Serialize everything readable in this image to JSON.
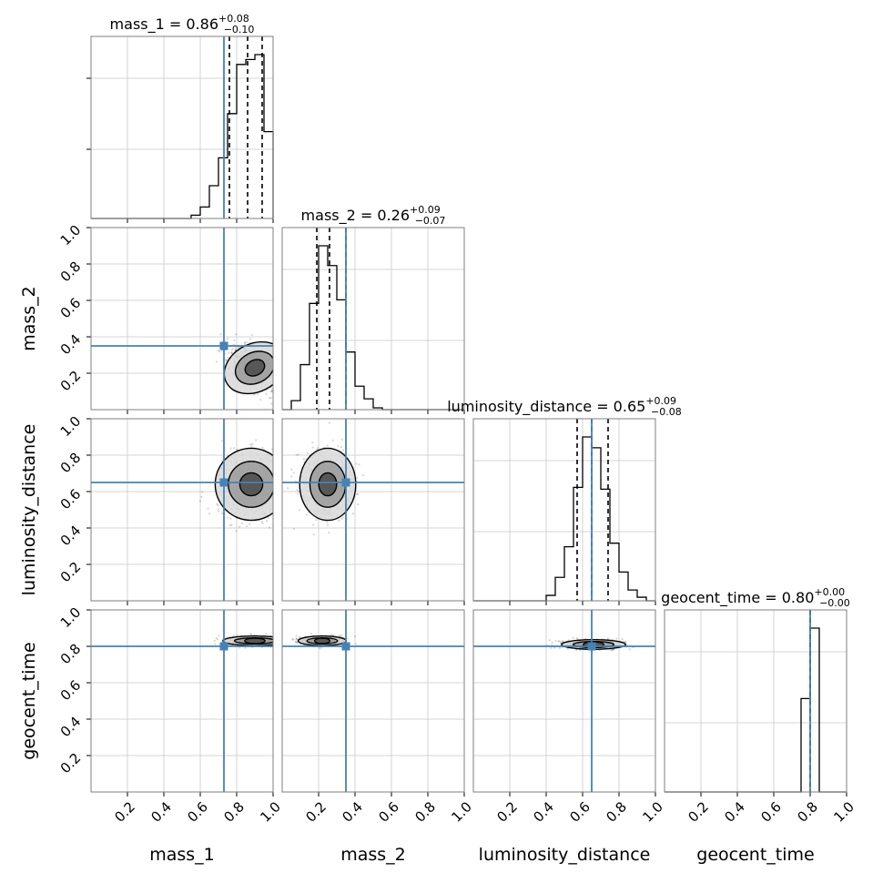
{
  "figure": {
    "type": "corner-plot",
    "truth_color": "#4682b4"
  },
  "chart_data": {
    "type": "corner",
    "parameters": [
      "mass_1",
      "mass_2",
      "luminosity_distance",
      "geocent_time"
    ],
    "axis_labels": [
      "mass_1",
      "mass_2",
      "luminosity_distance",
      "geocent_time"
    ],
    "ranges": [
      [
        0,
        1
      ],
      [
        0,
        1
      ],
      [
        0,
        1
      ],
      [
        0,
        1
      ]
    ],
    "ticks": [
      0.2,
      0.4,
      0.6,
      0.8,
      1.0
    ],
    "tick_labels": [
      "0.2",
      "0.4",
      "0.6",
      "0.8",
      "1.0"
    ],
    "truths": [
      0.73,
      0.35,
      0.65,
      0.8
    ],
    "titles": [
      {
        "text": "mass_1 = 0.86",
        "plus": "+0.08",
        "minus": "−0.10"
      },
      {
        "text": "mass_2 = 0.26",
        "plus": "+0.09",
        "minus": "−0.07"
      },
      {
        "text": "luminosity_distance = 0.65",
        "plus": "+0.09",
        "minus": "−0.08"
      },
      {
        "text": "geocent_time = 0.80",
        "plus": "+0.00",
        "minus": "−0.00"
      }
    ],
    "quantiles": [
      [
        0.76,
        0.86,
        0.94
      ],
      [
        0.19,
        0.26,
        0.35
      ],
      [
        0.57,
        0.65,
        0.74
      ],
      [
        0.8,
        0.8,
        0.8
      ]
    ],
    "histograms": [
      {
        "bins": [
          0.55,
          0.6,
          0.65,
          0.7,
          0.75,
          0.8,
          0.85,
          0.9,
          0.95,
          1.0
        ],
        "counts": [
          0.02,
          0.07,
          0.2,
          0.37,
          0.64,
          0.94,
          0.97,
          1.0,
          0.53
        ]
      },
      {
        "bins": [
          0.05,
          0.1,
          0.15,
          0.2,
          0.25,
          0.3,
          0.35,
          0.4,
          0.45,
          0.5,
          0.55
        ],
        "counts": [
          0.05,
          0.25,
          0.59,
          0.91,
          0.8,
          0.61,
          0.32,
          0.13,
          0.06,
          0.01
        ]
      },
      {
        "bins": [
          0.4,
          0.45,
          0.5,
          0.55,
          0.6,
          0.65,
          0.7,
          0.75,
          0.8,
          0.85,
          0.9,
          0.95
        ],
        "counts": [
          0.03,
          0.13,
          0.3,
          0.63,
          0.91,
          0.85,
          0.62,
          0.32,
          0.16,
          0.06,
          0.02
        ]
      },
      {
        "bins": [
          0.75,
          0.8,
          0.85
        ],
        "counts": [
          0.57,
          1.0
        ]
      }
    ],
    "joint_peaks": [
      {
        "row": 1,
        "col": 0,
        "center": [
          0.9,
          0.23
        ],
        "spread": [
          0.08,
          0.06
        ],
        "tilt": -0.6
      },
      {
        "row": 2,
        "col": 0,
        "center": [
          0.88,
          0.64
        ],
        "spread": [
          0.09,
          0.09
        ],
        "tilt": 0
      },
      {
        "row": 2,
        "col": 1,
        "center": [
          0.25,
          0.64
        ],
        "spread": [
          0.07,
          0.09
        ],
        "tilt": 0
      },
      {
        "row": 3,
        "col": 0,
        "center": [
          0.9,
          0.83
        ],
        "spread": [
          0.08,
          0.012
        ],
        "tilt": 0
      },
      {
        "row": 3,
        "col": 1,
        "center": [
          0.22,
          0.83
        ],
        "spread": [
          0.06,
          0.012
        ],
        "tilt": 0
      },
      {
        "row": 3,
        "col": 2,
        "center": [
          0.66,
          0.81
        ],
        "spread": [
          0.08,
          0.012
        ],
        "tilt": 0
      }
    ]
  }
}
